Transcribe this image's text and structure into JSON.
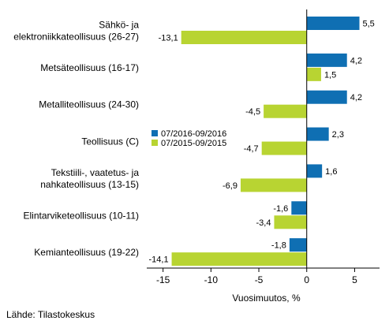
{
  "chart_data": {
    "type": "bar",
    "orientation": "horizontal",
    "categories": [
      [
        "Sähkö- ja",
        "elektroniikkateollisuus (26-27)"
      ],
      [
        "Metsäteollisuus (16-17)"
      ],
      [
        "Metalliteollisuus (24-30)"
      ],
      [
        "Teollisuus (C)"
      ],
      [
        "Tekstiili-, vaatetus- ja",
        "nahkateollisuus (13-15)"
      ],
      [
        "Elintarviketeollisuus (10-11)"
      ],
      [
        "Kemianteollisuus (19-22)"
      ]
    ],
    "series": [
      {
        "name": "07/2016-09/2016",
        "color": "#0f6fb3",
        "values": [
          5.5,
          4.2,
          4.2,
          2.3,
          1.6,
          -1.6,
          -1.8
        ],
        "labels": [
          "5,5",
          "4,2",
          "4,2",
          "2,3",
          "1,6",
          "-1,6",
          "-1,8"
        ]
      },
      {
        "name": "07/2015-09/2015",
        "color": "#b8d432",
        "values": [
          -13.1,
          1.5,
          -4.5,
          -4.7,
          -6.9,
          -3.4,
          -14.1
        ],
        "labels": [
          "-13,1",
          "1,5",
          "-4,5",
          "-4,7",
          "-6,9",
          "-3,4",
          "-14,1"
        ]
      }
    ],
    "xlabel": "Vuosimuutos, %",
    "xlim": [
      -16.7,
      7.6
    ],
    "xticks": [
      -15,
      -10,
      -5,
      0,
      5
    ],
    "xtick_labels": [
      "-15",
      "-10",
      "-5",
      "0",
      "5"
    ],
    "legend_position": "left-middle",
    "grid": false
  },
  "footer": {
    "source": "Lähde: Tilastokeskus"
  }
}
